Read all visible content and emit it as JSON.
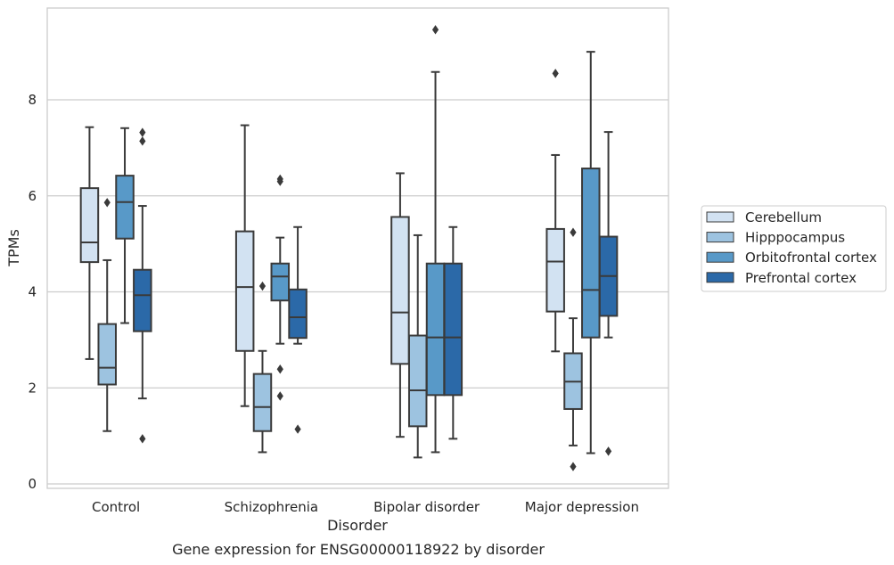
{
  "chart_data": {
    "type": "box",
    "title": "",
    "caption": "Gene expression for ENSG00000118922 by disorder",
    "xlabel": "Disorder",
    "ylabel": "TPMs",
    "ylim": [
      -0.1,
      9.8
    ],
    "yticks": [
      0,
      2,
      4,
      6,
      8
    ],
    "grid": "horizontal",
    "legend_position": "right",
    "categories": [
      "Control",
      "Schizophrenia",
      "Bipolar disorder",
      "Major depression"
    ],
    "series": [
      {
        "name": "Cerebellum",
        "color": "#d2e2f2",
        "boxes": [
          {
            "whislo": 2.6,
            "q1": 4.62,
            "med": 5.03,
            "q3": 6.16,
            "whishi": 7.43,
            "fliers": []
          },
          {
            "whislo": 1.62,
            "q1": 2.77,
            "med": 4.1,
            "q3": 5.26,
            "whishi": 7.47,
            "fliers": []
          },
          {
            "whislo": 0.98,
            "q1": 2.5,
            "med": 3.57,
            "q3": 5.56,
            "whishi": 6.47,
            "fliers": []
          },
          {
            "whislo": 2.76,
            "q1": 3.59,
            "med": 4.63,
            "q3": 5.31,
            "whishi": 6.85,
            "fliers": [
              8.55
            ]
          }
        ]
      },
      {
        "name": "Hipppocampus",
        "color": "#9dc3e0",
        "boxes": [
          {
            "whislo": 1.1,
            "q1": 2.07,
            "med": 2.42,
            "q3": 3.33,
            "whishi": 4.66,
            "fliers": [
              5.86
            ]
          },
          {
            "whislo": 0.66,
            "q1": 1.1,
            "med": 1.6,
            "q3": 2.29,
            "whishi": 2.77,
            "fliers": [
              4.12
            ]
          },
          {
            "whislo": 0.55,
            "q1": 1.2,
            "med": 1.95,
            "q3": 3.09,
            "whishi": 5.18,
            "fliers": []
          },
          {
            "whislo": 0.8,
            "q1": 1.56,
            "med": 2.13,
            "q3": 2.72,
            "whishi": 3.45,
            "fliers": [
              0.36,
              5.24
            ]
          }
        ]
      },
      {
        "name": "Orbitofrontal cortex",
        "color": "#5899c8",
        "boxes": [
          {
            "whislo": 3.35,
            "q1": 5.11,
            "med": 5.87,
            "q3": 6.42,
            "whishi": 7.41,
            "fliers": []
          },
          {
            "whislo": 2.92,
            "q1": 3.82,
            "med": 4.32,
            "q3": 4.59,
            "whishi": 5.13,
            "fliers": [
              6.3,
              6.35,
              2.39,
              1.83
            ]
          },
          {
            "whislo": 0.66,
            "q1": 1.85,
            "med": 3.05,
            "q3": 4.59,
            "whishi": 8.58,
            "fliers": [
              9.46
            ]
          },
          {
            "whislo": 0.64,
            "q1": 3.05,
            "med": 4.04,
            "q3": 6.57,
            "whishi": 9.0,
            "fliers": []
          }
        ]
      },
      {
        "name": "Prefrontal cortex",
        "color": "#2b69a8",
        "boxes": [
          {
            "whislo": 1.78,
            "q1": 3.18,
            "med": 3.93,
            "q3": 4.46,
            "whishi": 5.79,
            "fliers": [
              7.14,
              7.32,
              0.94
            ]
          },
          {
            "whislo": 2.92,
            "q1": 3.04,
            "med": 3.47,
            "q3": 4.05,
            "whishi": 5.35,
            "fliers": [
              1.14
            ]
          },
          {
            "whislo": 0.94,
            "q1": 1.85,
            "med": 3.05,
            "q3": 4.59,
            "whishi": 5.35,
            "fliers": []
          },
          {
            "whislo": 3.05,
            "q1": 3.5,
            "med": 4.33,
            "q3": 5.15,
            "whishi": 7.33,
            "fliers": [
              0.68
            ]
          }
        ]
      }
    ]
  }
}
